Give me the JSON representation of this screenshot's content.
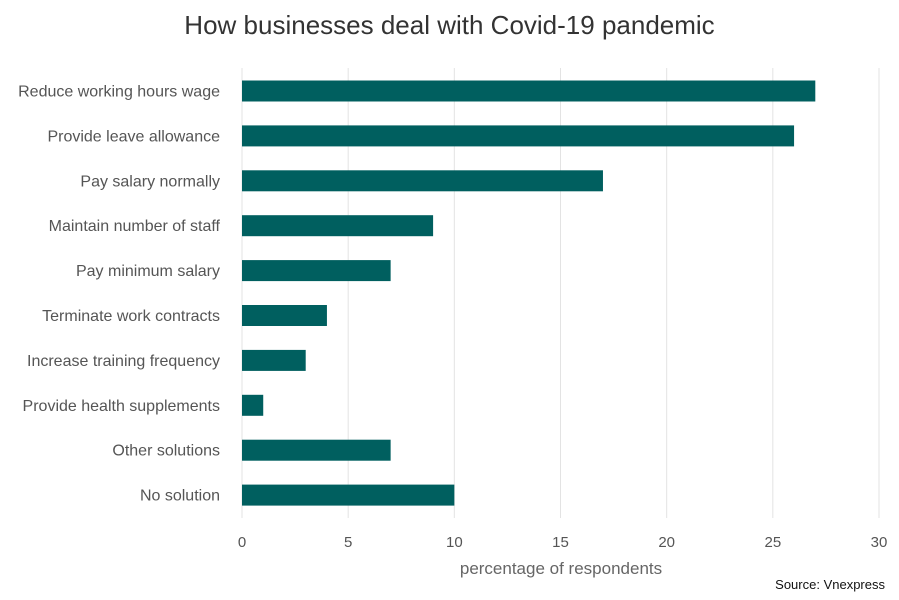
{
  "chart_data": {
    "type": "bar",
    "orientation": "horizontal",
    "title": "How businesses deal with Covid-19 pandemic",
    "xlabel": "percentage of respondents",
    "ylabel": "",
    "categories": [
      "Reduce working hours wage",
      "Provide leave allowance",
      "Pay salary normally",
      "Maintain number of staff",
      "Pay minimum salary",
      "Terminate work contracts",
      "Increase training frequency",
      "Provide health supplements",
      "Other solutions",
      "No solution"
    ],
    "values": [
      27,
      26,
      17,
      9,
      7,
      4,
      3,
      1,
      7,
      10
    ],
    "xlim": [
      0,
      30
    ],
    "xticks": [
      "0",
      "5",
      "10",
      "15",
      "20",
      "25",
      "30"
    ],
    "grid": "vertical",
    "bar_color": "#005f5f",
    "grid_color": "#e3e3e3"
  },
  "source": "Source: Vnexpress"
}
